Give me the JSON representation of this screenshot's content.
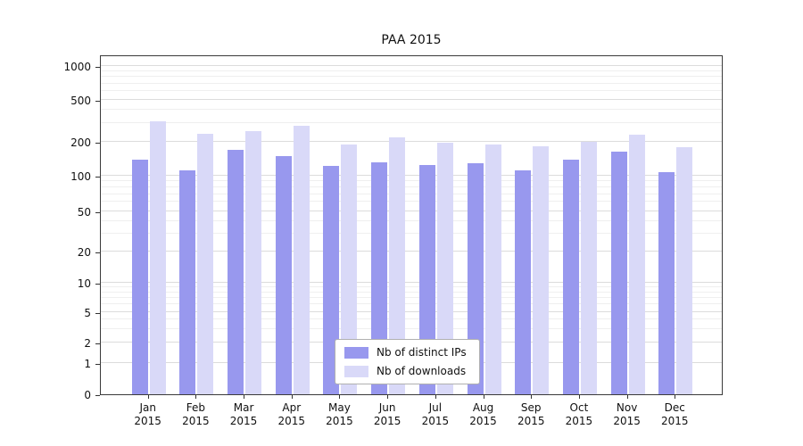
{
  "title": "PAA 2015",
  "chart_data": {
    "type": "bar",
    "title": "PAA 2015",
    "y_scale": "symlog",
    "grid": "horizontal",
    "legend_position": "lower-center",
    "y_ticks": [
      0,
      1,
      2,
      5,
      10,
      20,
      50,
      100,
      200,
      500,
      1000
    ],
    "x_categories_line1": [
      "Jan",
      "Feb",
      "Mar",
      "Apr",
      "May",
      "Jun",
      "Jul",
      "Aug",
      "Sep",
      "Oct",
      "Nov",
      "Dec"
    ],
    "x_categories_line2": "2015",
    "series": [
      {
        "name": "Nb of distinct IPs",
        "color": "#9898ee",
        "values": [
          140,
          112,
          170,
          150,
          122,
          132,
          125,
          130,
          112,
          138,
          165,
          108
        ]
      },
      {
        "name": "Nb of downloads",
        "color": "#d9d9f8",
        "values": [
          310,
          238,
          255,
          285,
          190,
          220,
          198,
          188,
          182,
          200,
          235,
          180
        ]
      }
    ]
  }
}
